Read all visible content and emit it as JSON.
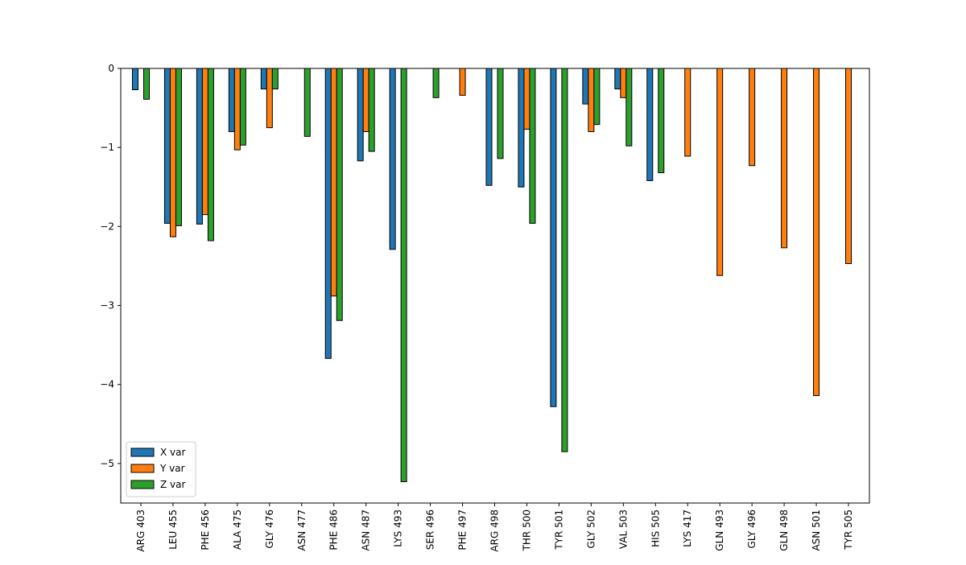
{
  "chart_data": {
    "type": "bar",
    "title": "",
    "xlabel": "",
    "ylabel": "",
    "ylim": [
      -5.5,
      0
    ],
    "yticks": [
      0,
      -1,
      -2,
      -3,
      -4,
      -5
    ],
    "ytick_labels": [
      "0",
      "−1",
      "−2",
      "−3",
      "−4",
      "−5"
    ],
    "categories": [
      "ARG 403",
      "LEU 455",
      "PHE 456",
      "ALA 475",
      "GLY 476",
      "ASN 477",
      "PHE 486",
      "ASN 487",
      "LYS 493",
      "SER 496",
      "PHE 497",
      "ARG 498",
      "THR 500",
      "TYR 501",
      "GLY 502",
      "VAL 503",
      "HIS 505",
      "LYS 417",
      "GLN 493",
      "GLY 496",
      "GLN 498",
      "ASN 501",
      "TYR 505"
    ],
    "series": [
      {
        "name": "X var",
        "color": "#1f77b4",
        "values": [
          -0.27,
          -1.96,
          -1.97,
          -0.8,
          -0.26,
          0,
          -3.67,
          -1.17,
          -2.29,
          0,
          0,
          -1.48,
          -1.5,
          -4.28,
          -0.45,
          -0.26,
          -1.42,
          0,
          0,
          0,
          0,
          0,
          0
        ]
      },
      {
        "name": "Y var",
        "color": "#ff7f0e",
        "values": [
          0,
          -2.13,
          -1.85,
          -1.03,
          -0.75,
          0,
          -2.88,
          -0.8,
          0,
          0,
          -0.34,
          0,
          -0.77,
          0,
          -0.8,
          -0.37,
          0,
          -1.11,
          -2.62,
          -1.23,
          -2.27,
          -4.14,
          -2.47
        ]
      },
      {
        "name": "Z var",
        "color": "#2ca02c",
        "values": [
          -0.39,
          -1.99,
          -2.18,
          -0.97,
          -0.26,
          -0.86,
          -3.19,
          -1.05,
          -5.23,
          -0.37,
          0,
          -1.14,
          -1.96,
          -4.85,
          -0.71,
          -0.98,
          -1.32,
          0,
          0,
          0,
          0,
          0,
          0
        ]
      }
    ],
    "legend_position": "lower-left",
    "grid": false
  }
}
